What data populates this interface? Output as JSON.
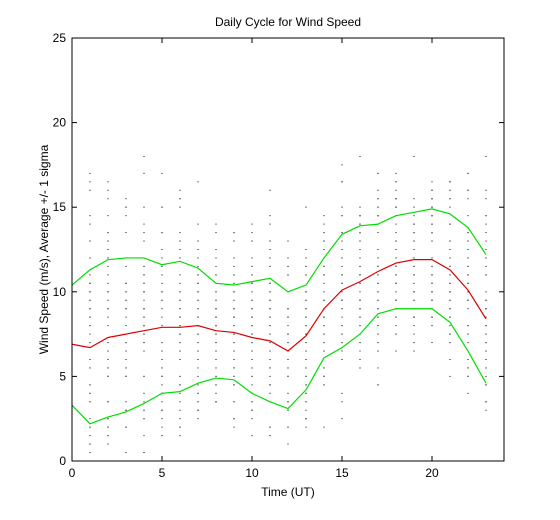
{
  "chart_data": {
    "type": "line",
    "title": "Daily Cycle for Wind Speed",
    "xlabel": "Time (UT)",
    "ylabel": "Wind Speed (m/s), Average +/- 1 sigma",
    "xlim": [
      0,
      24
    ],
    "ylim": [
      0,
      25
    ],
    "xticks": [
      0,
      5,
      10,
      15,
      20
    ],
    "yticks": [
      0,
      5,
      10,
      15,
      20,
      25
    ],
    "grid": false,
    "x": [
      0,
      1,
      2,
      3,
      4,
      5,
      6,
      7,
      8,
      9,
      10,
      11,
      12,
      13,
      14,
      15,
      16,
      17,
      18,
      19,
      20,
      21,
      22,
      23
    ],
    "series": [
      {
        "color": "#00dd00",
        "role": "upper",
        "values": [
          10.4,
          11.3,
          11.9,
          12.0,
          12.0,
          11.6,
          11.8,
          11.4,
          10.5,
          10.4,
          10.6,
          10.8,
          10.0,
          10.4,
          12.0,
          13.4,
          13.9,
          14.0,
          14.5,
          14.7,
          14.9,
          14.6,
          13.8,
          12.2
        ]
      },
      {
        "color": "#dd0000",
        "role": "mean",
        "values": [
          6.9,
          6.7,
          7.3,
          7.5,
          7.7,
          7.9,
          7.9,
          8.0,
          7.7,
          7.6,
          7.3,
          7.1,
          6.5,
          7.4,
          9.0,
          10.1,
          10.6,
          11.2,
          11.7,
          11.9,
          11.9,
          11.3,
          10.1,
          8.4
        ]
      },
      {
        "color": "#00dd00",
        "role": "lower",
        "values": [
          3.3,
          2.2,
          2.6,
          2.9,
          3.4,
          4.0,
          4.1,
          4.6,
          4.9,
          4.8,
          4.0,
          3.5,
          3.1,
          4.2,
          6.1,
          6.7,
          7.5,
          8.7,
          9.0,
          9.0,
          9.0,
          8.2,
          6.5,
          4.6
        ]
      }
    ],
    "scatter_color": "#000000"
  }
}
